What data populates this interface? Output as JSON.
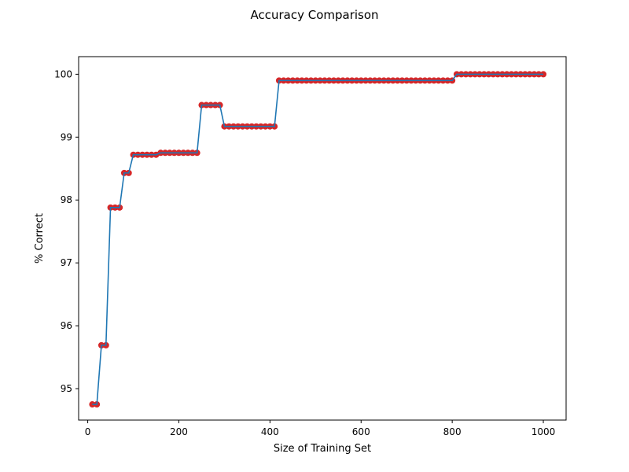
{
  "chart_data": {
    "type": "line",
    "title": "Accuracy Comparison",
    "xlabel": "Size of Training Set",
    "ylabel": "% Correct",
    "xlim": [
      -20,
      1050
    ],
    "ylim": [
      94.5,
      100.28
    ],
    "xticks": [
      0,
      200,
      400,
      600,
      800,
      1000
    ],
    "yticks": [
      95,
      96,
      97,
      98,
      99,
      100
    ],
    "xtick_labels": [
      "0",
      "200",
      "400",
      "600",
      "800",
      "1000"
    ],
    "ytick_labels": [
      "95",
      "96",
      "97",
      "98",
      "99",
      "100"
    ],
    "grid": false,
    "line_color": "#1f77b4",
    "marker_color": "#d62728",
    "segments": [
      {
        "from": 10,
        "to": 20,
        "y": 94.75
      },
      {
        "from": 30,
        "to": 40,
        "y": 95.69
      },
      {
        "from": 50,
        "to": 70,
        "y": 97.88
      },
      {
        "from": 80,
        "to": 90,
        "y": 98.43
      },
      {
        "from": 100,
        "to": 150,
        "y": 98.72
      },
      {
        "from": 160,
        "to": 240,
        "y": 98.75
      },
      {
        "from": 250,
        "to": 290,
        "y": 99.51
      },
      {
        "from": 300,
        "to": 410,
        "y": 99.17
      },
      {
        "from": 420,
        "to": 800,
        "y": 99.9
      },
      {
        "from": 810,
        "to": 1000,
        "y": 100.0
      }
    ],
    "x_step": 10
  }
}
